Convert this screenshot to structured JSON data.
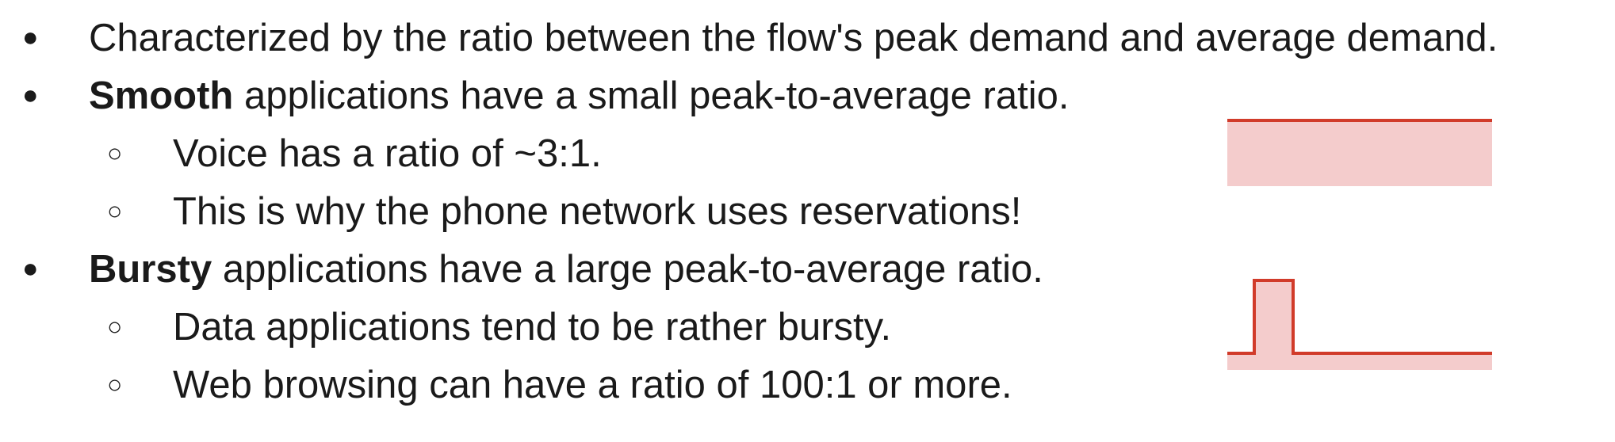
{
  "bullets": [
    {
      "level": 1,
      "marker": "●",
      "bold": "",
      "text": "Characterized by the ratio between the flow's peak demand and average demand."
    },
    {
      "level": 1,
      "marker": "●",
      "bold": "Smooth",
      "text": " applications have a small peak-to-average ratio."
    },
    {
      "level": 2,
      "marker": "○",
      "bold": "",
      "text": "Voice has a ratio of ~3:1."
    },
    {
      "level": 2,
      "marker": "○",
      "bold": "",
      "text": "This is why the phone network uses reservations!"
    },
    {
      "level": 1,
      "marker": "●",
      "bold": "Bursty",
      "text": " applications have a large peak-to-average ratio."
    },
    {
      "level": 2,
      "marker": "○",
      "bold": "",
      "text": "Data applications tend to be rather bursty."
    },
    {
      "level": 2,
      "marker": "○",
      "bold": "",
      "text": "Web browsing can have a ratio of 100:1 or more."
    }
  ],
  "colors": {
    "text": "#1a1a1a",
    "line": "#d13b2a",
    "fill": "#f4cccc"
  },
  "diagrams": {
    "smooth": {
      "shape": "flat-line-with-fill"
    },
    "bursty": {
      "shape": "spike-with-baseline-fill"
    }
  }
}
